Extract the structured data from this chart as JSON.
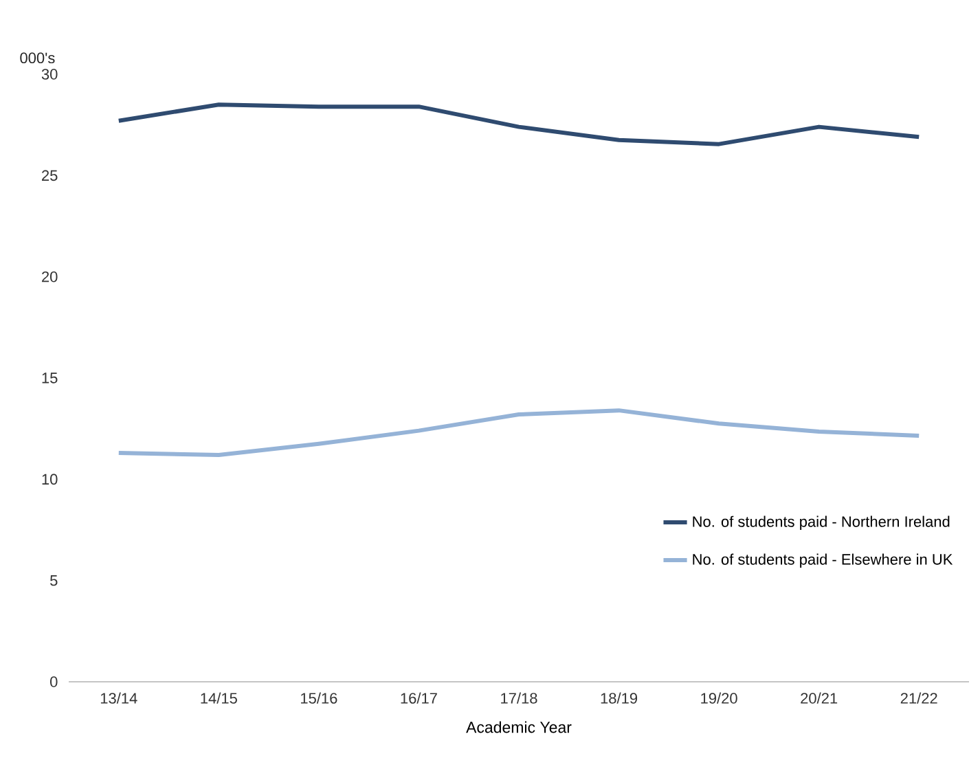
{
  "chart_data": {
    "type": "line",
    "ylabel": "000's",
    "xlabel": "Academic Year",
    "categories": [
      "13/14",
      "14/15",
      "15/16",
      "16/17",
      "17/18",
      "18/19",
      "19/20",
      "20/21",
      "21/22"
    ],
    "series": [
      {
        "name": "No. of students paid - Northern Ireland",
        "color": "#2f4b70",
        "values": [
          27.7,
          28.5,
          28.4,
          28.4,
          27.4,
          26.75,
          26.55,
          27.4,
          26.9
        ]
      },
      {
        "name": "No. of students paid - Elsewhere in UK",
        "color": "#95b3d7",
        "values": [
          11.3,
          11.2,
          11.75,
          12.4,
          13.2,
          13.4,
          12.75,
          12.35,
          12.15
        ]
      }
    ],
    "ylim": [
      0,
      30
    ],
    "yticks": [
      0,
      5,
      10,
      15,
      20,
      25,
      30
    ],
    "legend": "right",
    "marker": "none",
    "line_style": "solid"
  }
}
